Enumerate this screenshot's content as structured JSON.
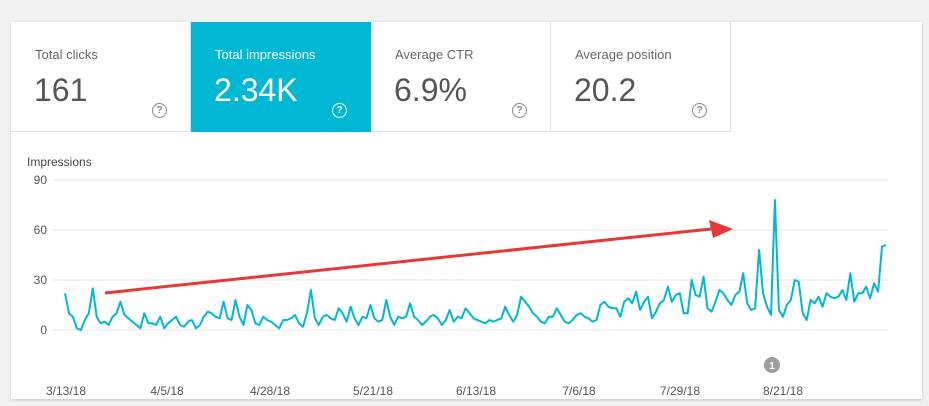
{
  "metrics": [
    {
      "label": "Total clicks",
      "value": "161",
      "help": "?",
      "active": false
    },
    {
      "label": "Total impressions",
      "value": "2.34K",
      "help": "?",
      "active": true
    },
    {
      "label": "Average CTR",
      "value": "6.9%",
      "help": "?",
      "active": false
    },
    {
      "label": "Average position",
      "value": "20.2",
      "help": "?",
      "active": false
    }
  ],
  "colors": {
    "accent": "#00b8d4",
    "line": "#00b8d4",
    "arrow": "#e53935",
    "grid": "#e6e6e6",
    "annotation": "#9e9e9e"
  },
  "annotation_label": "1",
  "chart_data": {
    "type": "line",
    "title": "",
    "ylabel": "Impressions",
    "xlabel": "",
    "ylim": [
      0,
      90
    ],
    "yticks": [
      0,
      30,
      60,
      90
    ],
    "grid": true,
    "x_tick_labels": [
      "3/13/18",
      "4/5/18",
      "4/28/18",
      "5/21/18",
      "6/13/18",
      "7/6/18",
      "7/29/18",
      "8/21/18"
    ],
    "x_start": "3/13/18",
    "series": [
      {
        "values": [
          22,
          10,
          8,
          1,
          0,
          6,
          10,
          25,
          8,
          4,
          5,
          3,
          8,
          10,
          17,
          9,
          7,
          5,
          3,
          1,
          10,
          4,
          4,
          3,
          8,
          1,
          4,
          6,
          8,
          3,
          2,
          5,
          6,
          1,
          3,
          8,
          11,
          10,
          8,
          7,
          17,
          7,
          6,
          18,
          8,
          3,
          15,
          12,
          4,
          3,
          8,
          6,
          5,
          3,
          1,
          6,
          6,
          7,
          9,
          4,
          2,
          10,
          24,
          7,
          3,
          8,
          9,
          7,
          6,
          13,
          10,
          5,
          14,
          7,
          3,
          8,
          7,
          15,
          7,
          5,
          6,
          18,
          8,
          3,
          8,
          7,
          8,
          16,
          8,
          6,
          3,
          5,
          8,
          9,
          7,
          3,
          6,
          12,
          5,
          8,
          7,
          13,
          10,
          7,
          6,
          5,
          4,
          6,
          5,
          6,
          7,
          14,
          9,
          5,
          9,
          20,
          17,
          14,
          10,
          8,
          5,
          4,
          8,
          8,
          13,
          9,
          5,
          4,
          6,
          9,
          10,
          8,
          7,
          5,
          6,
          15,
          17,
          14,
          13,
          13,
          8,
          17,
          19,
          16,
          23,
          12,
          17,
          20,
          7,
          11,
          16,
          18,
          26,
          17,
          21,
          22,
          10,
          10,
          30,
          21,
          20,
          32,
          13,
          11,
          17,
          24,
          22,
          18,
          15,
          21,
          23,
          34,
          16,
          12,
          13,
          48,
          22,
          14,
          9,
          78,
          12,
          8,
          15,
          18,
          30,
          29,
          10,
          6,
          18,
          16,
          20,
          14,
          22,
          20,
          19,
          20,
          24,
          18,
          34,
          17,
          22,
          22,
          26,
          19,
          28,
          23,
          50,
          51
        ]
      }
    ],
    "annotations": [
      {
        "marker": "1",
        "near": "8/18/18"
      }
    ]
  }
}
